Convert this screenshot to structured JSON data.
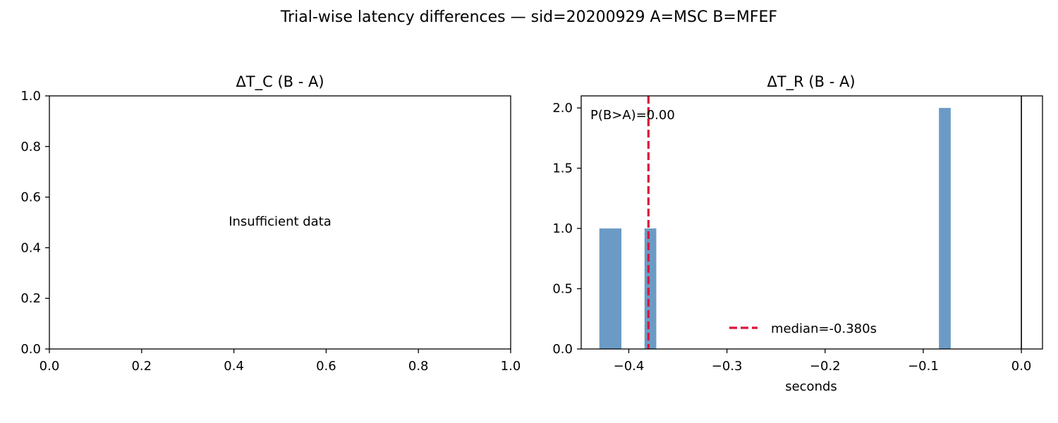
{
  "figure": {
    "suptitle": "Trial-wise latency differences — sid=20200929  A=MSC  B=MFEF"
  },
  "colors": {
    "bar": "#6b9bc5",
    "median_line": "#dc143c",
    "axes": "#000000"
  },
  "chart_data": [
    {
      "type": "bar",
      "title": "ΔT_C (B - A)",
      "xlabel": "",
      "ylabel": "",
      "xlim": [
        0.0,
        1.0
      ],
      "ylim": [
        0.0,
        1.0
      ],
      "x_ticks": [
        "0.0",
        "0.2",
        "0.4",
        "0.6",
        "0.8",
        "1.0"
      ],
      "y_ticks": [
        "0.0",
        "0.2",
        "0.4",
        "0.6",
        "0.8",
        "1.0"
      ],
      "annotation": "Insufficient data",
      "grid": false,
      "bars": []
    },
    {
      "type": "bar",
      "title": "ΔT_R (B - A)",
      "xlabel": "seconds",
      "ylabel": "",
      "xlim": [
        -0.4485,
        0.0215
      ],
      "ylim": [
        0.0,
        2.1
      ],
      "x_ticks": [
        "−0.4",
        "−0.3",
        "−0.2",
        "−0.1",
        "0.0"
      ],
      "x_tick_values": [
        -0.4,
        -0.3,
        -0.2,
        -0.1,
        0.0
      ],
      "y_ticks": [
        "0.0",
        "0.5",
        "1.0",
        "1.5",
        "2.0"
      ],
      "y_tick_values": [
        0.0,
        0.5,
        1.0,
        1.5,
        2.0
      ],
      "grid": false,
      "bars": [
        {
          "x0": -0.43,
          "x1": -0.4075,
          "count": 1
        },
        {
          "x0": -0.384,
          "x1": -0.372,
          "count": 1
        },
        {
          "x0": -0.084,
          "x1": -0.072,
          "count": 2
        }
      ],
      "median": -0.38,
      "reference_line": 0.0,
      "annotation": "P(B>A)=0.00",
      "legend": {
        "label": "median=-0.380s",
        "placement": "lower center"
      }
    }
  ]
}
